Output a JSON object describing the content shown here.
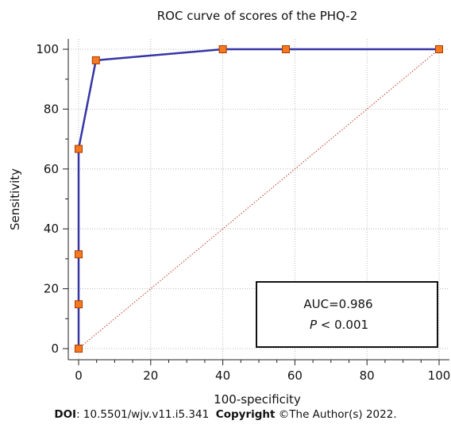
{
  "chart_data": {
    "type": "line",
    "title": "ROC curve of scores of the PHQ-2",
    "xlabel": "100-specificity",
    "ylabel": "Sensitivity",
    "xlim": [
      0,
      100
    ],
    "ylim": [
      0,
      100
    ],
    "xticks": [
      0,
      20,
      40,
      60,
      80,
      100
    ],
    "yticks": [
      0,
      20,
      40,
      60,
      80,
      100
    ],
    "x_minor_step": 5,
    "y_minor_step": 10,
    "grid": true,
    "series": [
      {
        "points": [
          {
            "x": 0,
            "y": 0
          },
          {
            "x": 0,
            "y": 14.8
          },
          {
            "x": 0,
            "y": 31.5
          },
          {
            "x": 0,
            "y": 66.7
          },
          {
            "x": 4.8,
            "y": 96.3
          },
          {
            "x": 40,
            "y": 100
          },
          {
            "x": 57.5,
            "y": 100
          },
          {
            "x": 100,
            "y": 100
          }
        ]
      }
    ],
    "reference_line": {
      "from": [
        0,
        0
      ],
      "to": [
        100,
        100
      ]
    },
    "annotation": {
      "auc_text": "AUC=0.986",
      "p_symbol": "P",
      "p_text": " < 0.001"
    },
    "colors": {
      "curve": "#3535a5",
      "marker_fill": "#f57a1f",
      "marker_stroke": "#a63a00",
      "reference": "#c0392b",
      "grid": "#a8a8a8",
      "axis": "#222222"
    }
  },
  "footer": {
    "doi_label": "DOI",
    "doi_value": ": 10.5501/wjv.v11.i5.341",
    "copyright_label": "Copyright",
    "copyright_value": " ©The Author(s) 2022."
  }
}
